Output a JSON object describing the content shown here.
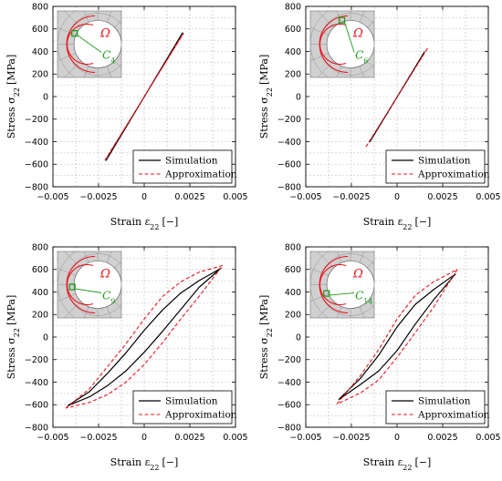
{
  "figure": {
    "legend_simulation": "Simulation",
    "legend_approximation": "Approximation",
    "colors": {
      "simulation": "#000000",
      "approximation": "#e8141c",
      "inset_region": "#e8141c",
      "inset_point": "#1a9a1a",
      "inset_mesh_fill": "#d0d0d0",
      "grid": "#b8b8b8"
    }
  },
  "chart_data": [
    {
      "type": "line",
      "xlabel_text": "Strain ε",
      "xlabel_sub": "22",
      "xlabel_unit": "[−]",
      "ylabel_text": "Stress σ",
      "ylabel_sub": "22",
      "ylabel_unit": "[MPa]",
      "xlim": [
        -0.005,
        0.005
      ],
      "ylim": [
        -800,
        800
      ],
      "xticks": [
        "−0.005",
        "−0.0025",
        "0",
        "0.0025",
        "0.005"
      ],
      "xtick_values": [
        -0.005,
        -0.0025,
        0,
        0.0025,
        0.005
      ],
      "yticks": [
        "800",
        "600",
        "400",
        "200",
        "0",
        "−200",
        "−400",
        "−600",
        "−800"
      ],
      "ytick_values": [
        800,
        600,
        400,
        200,
        0,
        -200,
        -400,
        -600,
        -800
      ],
      "grid": true,
      "legend_position": "bottom-right",
      "inset": {
        "region_label": "Ω",
        "point_label": "C",
        "point_sub": "4"
      },
      "series": [
        {
          "name": "Simulation",
          "style": "solid",
          "x": [
            -0.0021,
            0.0021,
            -0.0021
          ],
          "y": [
            -570,
            565,
            -570
          ]
        },
        {
          "name": "Approximation",
          "style": "dashed",
          "x": [
            -0.00215,
            0.00215,
            -0.00215
          ],
          "y": [
            -565,
            560,
            -565
          ]
        }
      ]
    },
    {
      "type": "line",
      "xlabel_text": "Strain ε",
      "xlabel_sub": "22",
      "xlabel_unit": "[−]",
      "ylabel_text": "Stress σ",
      "ylabel_sub": "22",
      "ylabel_unit": "[MPa]",
      "xlim": [
        -0.005,
        0.005
      ],
      "ylim": [
        -800,
        800
      ],
      "xticks": [
        "−0.005",
        "−0.0025",
        "0",
        "0.0025",
        "0.005"
      ],
      "xtick_values": [
        -0.005,
        -0.0025,
        0,
        0.0025,
        0.005
      ],
      "yticks": [
        "800",
        "600",
        "400",
        "200",
        "0",
        "−200",
        "−400",
        "−600",
        "−800"
      ],
      "ytick_values": [
        800,
        600,
        400,
        200,
        0,
        -200,
        -400,
        -600,
        -800
      ],
      "grid": true,
      "legend_position": "bottom-right",
      "inset": {
        "region_label": "Ω",
        "point_label": "C",
        "point_sub": "6"
      },
      "series": [
        {
          "name": "Simulation",
          "style": "solid",
          "x": [
            -0.0015,
            0.0015,
            -0.0015
          ],
          "y": [
            -405,
            395,
            -405
          ]
        },
        {
          "name": "Approximation",
          "style": "dashed",
          "x": [
            -0.0017,
            0.0017,
            -0.0017
          ],
          "y": [
            -445,
            435,
            -445
          ]
        }
      ]
    },
    {
      "type": "line",
      "xlabel_text": "Strain ε",
      "xlabel_sub": "22",
      "xlabel_unit": "[−]",
      "ylabel_text": "Stress σ",
      "ylabel_sub": "22",
      "ylabel_unit": "[MPa]",
      "xlim": [
        -0.005,
        0.005
      ],
      "ylim": [
        -800,
        800
      ],
      "xticks": [
        "−0.005",
        "−0.0025",
        "0",
        "0.0025",
        "0.005"
      ],
      "xtick_values": [
        -0.005,
        -0.0025,
        0,
        0.0025,
        0.005
      ],
      "yticks": [
        "800",
        "600",
        "400",
        "200",
        "0",
        "−200",
        "−400",
        "−600",
        "−800"
      ],
      "ytick_values": [
        800,
        600,
        400,
        200,
        0,
        -200,
        -400,
        -600,
        -800
      ],
      "grid": true,
      "legend_position": "bottom-right",
      "inset": {
        "region_label": "Ω",
        "point_label": "C",
        "point_sub": "9"
      },
      "series": [
        {
          "name": "Simulation",
          "style": "solid",
          "x": [
            -0.0042,
            -0.003,
            -0.002,
            -0.001,
            0,
            0.001,
            0.002,
            0.003,
            0.0042,
            0.003,
            0.002,
            0.001,
            0,
            -0.001,
            -0.002,
            -0.003,
            -0.0042
          ],
          "y": [
            -610,
            -485,
            -320,
            -140,
            60,
            240,
            390,
            500,
            610,
            440,
            245,
            50,
            -135,
            -300,
            -430,
            -530,
            -610
          ]
        },
        {
          "name": "Approximation",
          "style": "dashed",
          "x": [
            -0.0043,
            -0.003,
            -0.002,
            -0.001,
            0,
            0.001,
            0.002,
            0.003,
            0.0043,
            0.003,
            0.002,
            0.001,
            0,
            -0.001,
            -0.002,
            -0.003,
            -0.0043
          ],
          "y": [
            -630,
            -460,
            -260,
            -60,
            160,
            360,
            490,
            575,
            635,
            360,
            160,
            -50,
            -245,
            -400,
            -510,
            -580,
            -630
          ]
        }
      ]
    },
    {
      "type": "line",
      "xlabel_text": "Strain ε",
      "xlabel_sub": "22",
      "xlabel_unit": "[−]",
      "ylabel_text": "Stress σ",
      "ylabel_sub": "22",
      "ylabel_unit": "[MPa]",
      "xlim": [
        -0.005,
        0.005
      ],
      "ylim": [
        -800,
        800
      ],
      "xticks": [
        "−0.005",
        "−0.0025",
        "0",
        "0.0025",
        "0.005"
      ],
      "xtick_values": [
        -0.005,
        -0.0025,
        0,
        0.0025,
        0.005
      ],
      "yticks": [
        "800",
        "600",
        "400",
        "200",
        "0",
        "−200",
        "−400",
        "−600",
        "−800"
      ],
      "ytick_values": [
        800,
        600,
        400,
        200,
        0,
        -200,
        -400,
        -600,
        -800
      ],
      "grid": true,
      "legend_position": "bottom-right",
      "inset": {
        "region_label": "Ω",
        "point_label": "C",
        "point_sub": "14"
      },
      "series": [
        {
          "name": "Simulation",
          "style": "solid",
          "x": [
            -0.0032,
            -0.002,
            -0.001,
            0,
            0.001,
            0.002,
            0.0032,
            0.002,
            0.001,
            0,
            -0.001,
            -0.002,
            -0.0032
          ],
          "y": [
            -555,
            -365,
            -160,
            90,
            290,
            420,
            560,
            330,
            115,
            -120,
            -300,
            -420,
            -555
          ]
        },
        {
          "name": "Approximation",
          "style": "dashed",
          "x": [
            -0.0033,
            -0.002,
            -0.001,
            0,
            0.001,
            0.002,
            0.0033,
            0.002,
            0.001,
            0,
            -0.001,
            -0.002,
            -0.0033
          ],
          "y": [
            -595,
            -340,
            -110,
            160,
            370,
            490,
            600,
            265,
            40,
            -180,
            -380,
            -495,
            -595
          ]
        }
      ]
    }
  ]
}
